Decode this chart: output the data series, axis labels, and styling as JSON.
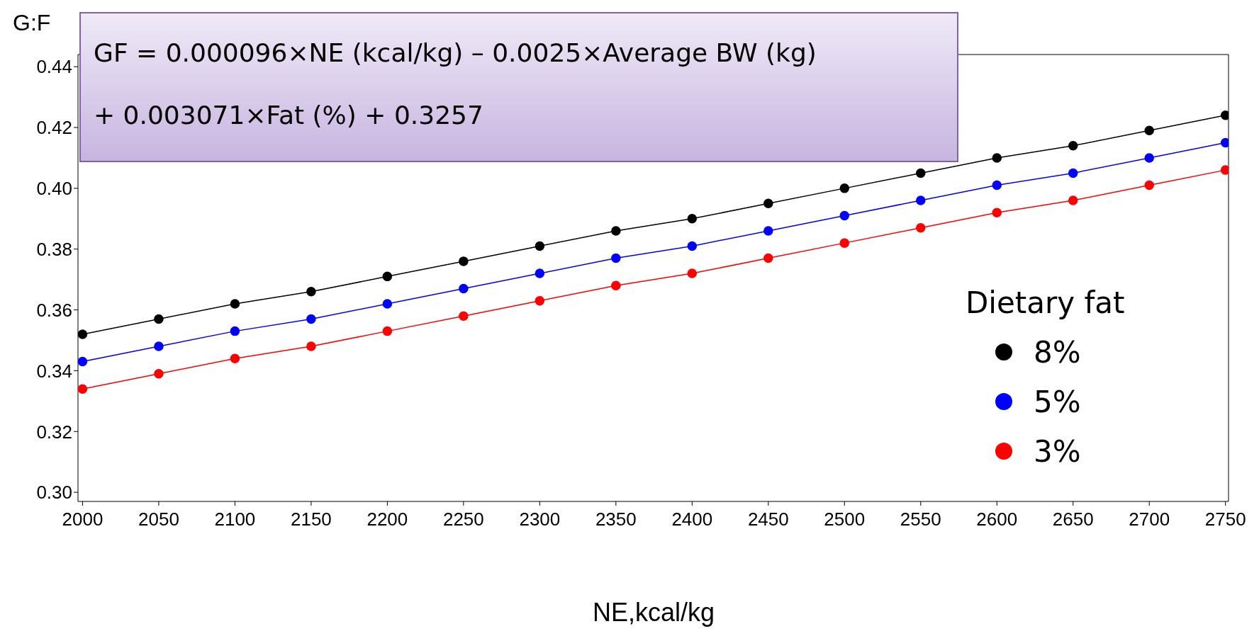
{
  "chart_data": {
    "type": "line",
    "ylabel": "G:F",
    "xlabel": "NE,kcal/kg",
    "legend_title": "Dietary fat",
    "annotations": [
      "GF = 0.000096×NE (kcal/kg) – 0.0025×Average BW (kg)",
      "+ 0.003071×Fat (%) + 0.3257"
    ],
    "x": [
      2000,
      2050,
      2100,
      2150,
      2200,
      2250,
      2300,
      2350,
      2400,
      2450,
      2500,
      2550,
      2600,
      2650,
      2700,
      2750
    ],
    "series": [
      {
        "name": "8%",
        "color": "#000000",
        "values": [
          0.352,
          0.357,
          0.362,
          0.366,
          0.371,
          0.376,
          0.381,
          0.386,
          0.39,
          0.395,
          0.4,
          0.405,
          0.41,
          0.414,
          0.419,
          0.424
        ]
      },
      {
        "name": "5%",
        "color": "#0000ff",
        "values": [
          0.343,
          0.348,
          0.353,
          0.357,
          0.362,
          0.367,
          0.372,
          0.377,
          0.381,
          0.386,
          0.391,
          0.396,
          0.401,
          0.405,
          0.41,
          0.415
        ]
      },
      {
        "name": "3%",
        "color": "#ff0000",
        "values": [
          0.334,
          0.339,
          0.344,
          0.348,
          0.353,
          0.358,
          0.363,
          0.368,
          0.372,
          0.377,
          0.382,
          0.387,
          0.392,
          0.396,
          0.401,
          0.406
        ]
      }
    ],
    "xlim": [
      1997,
      2752
    ],
    "xticks": [
      2000,
      2050,
      2100,
      2150,
      2200,
      2250,
      2300,
      2350,
      2400,
      2450,
      2500,
      2550,
      2600,
      2650,
      2700,
      2750
    ],
    "ylim": [
      0.297,
      0.444
    ],
    "yticks": [
      {
        "value": 0.3,
        "label": "0.30"
      },
      {
        "value": 0.32,
        "label": "0.32"
      },
      {
        "value": 0.34,
        "label": "0.34"
      },
      {
        "value": 0.36,
        "label": "0.36"
      },
      {
        "value": 0.38,
        "label": "0.38"
      },
      {
        "value": 0.4,
        "label": "0.40"
      },
      {
        "value": 0.42,
        "label": "0.42"
      },
      {
        "value": 0.44,
        "label": "0.44"
      }
    ],
    "grid": false,
    "legend": "right",
    "marker": "circle",
    "line_style": "solid"
  }
}
